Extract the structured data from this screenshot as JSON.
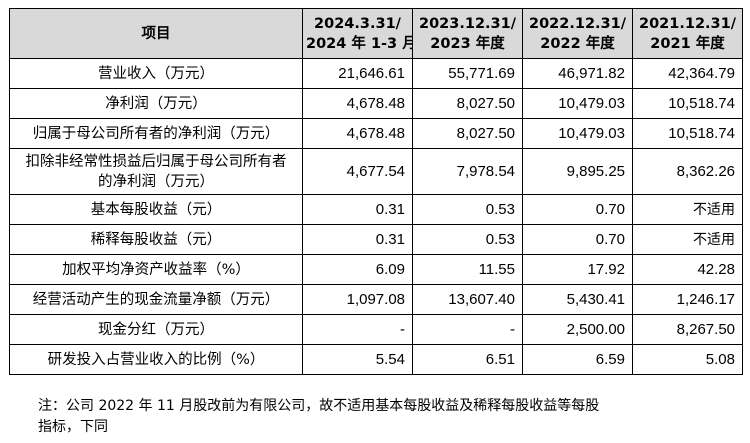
{
  "table": {
    "header": {
      "item": "项目",
      "periods": [
        {
          "line1": "2024.3.31/",
          "line2": "2024 年 1-3 月"
        },
        {
          "line1": "2023.12.31/",
          "line2": "2023 年度"
        },
        {
          "line1": "2022.12.31/",
          "line2": "2022 年度"
        },
        {
          "line1": "2021.12.31/",
          "line2": "2021 年度"
        }
      ]
    },
    "rows": [
      {
        "label": "营业收入（万元）",
        "values": [
          "21,646.61",
          "55,771.69",
          "46,971.82",
          "42,364.79"
        ]
      },
      {
        "label": "净利润（万元）",
        "values": [
          "4,678.48",
          "8,027.50",
          "10,479.03",
          "10,518.74"
        ]
      },
      {
        "label": "归属于母公司所有者的净利润（万元）",
        "values": [
          "4,678.48",
          "8,027.50",
          "10,479.03",
          "10,518.74"
        ]
      },
      {
        "label": "扣除非经常性损益后归属于母公司所有者的净利润（万元）",
        "values": [
          "4,677.54",
          "7,978.54",
          "9,895.25",
          "8,362.26"
        ]
      },
      {
        "label": "基本每股收益（元）",
        "values": [
          "0.31",
          "0.53",
          "0.70",
          "不适用"
        ]
      },
      {
        "label": "稀释每股收益（元）",
        "values": [
          "0.31",
          "0.53",
          "0.70",
          "不适用"
        ]
      },
      {
        "label": "加权平均净资产收益率（%）",
        "values": [
          "6.09",
          "11.55",
          "17.92",
          "42.28"
        ]
      },
      {
        "label": "经营活动产生的现金流量净额（万元）",
        "values": [
          "1,097.08",
          "13,607.40",
          "5,430.41",
          "1,246.17"
        ]
      },
      {
        "label": "现金分红（万元）",
        "values": [
          "-",
          "-",
          "2,500.00",
          "8,267.50"
        ]
      },
      {
        "label": "研发投入占营业收入的比例（%）",
        "values": [
          "5.54",
          "6.51",
          "6.59",
          "5.08"
        ]
      }
    ]
  },
  "note": {
    "line1": "注：公司 2022 年 11 月股改前为有限公司，故不适用基本每股收益及稀释每股收益等每股",
    "line2": "指标，下同"
  }
}
